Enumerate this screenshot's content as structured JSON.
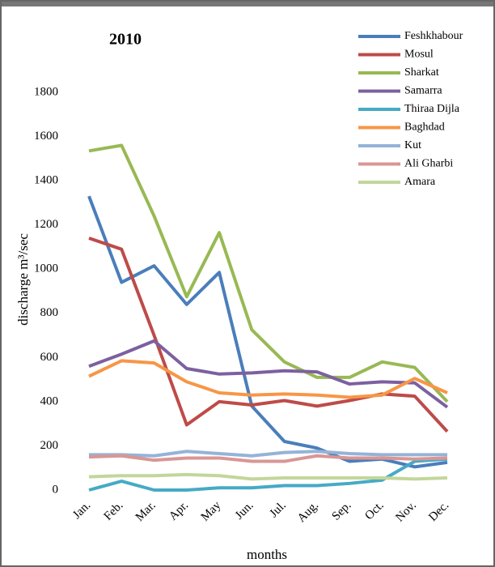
{
  "chart_data": {
    "type": "line",
    "title": "2010",
    "x_label": "months",
    "y_label": "discharge m³/sec",
    "categories": [
      "Jan.",
      "Feb.",
      "Mar.",
      "Apr.",
      "May",
      "Jun.",
      "Jul.",
      "Aug.",
      "Sep.",
      "Oct.",
      "Nov.",
      "Dec."
    ],
    "ylim": [
      0,
      1800
    ],
    "yticks": [
      0,
      200,
      400,
      600,
      800,
      1000,
      1200,
      1400,
      1600,
      1800
    ],
    "grid": false,
    "legend": "top-right",
    "series": [
      {
        "name": "Feshkhabour",
        "color": "#4a7ebb",
        "values": [
          1330,
          940,
          1015,
          840,
          985,
          380,
          220,
          190,
          130,
          140,
          105,
          125
        ]
      },
      {
        "name": "Mosul",
        "color": "#be4b48",
        "values": [
          1140,
          1090,
          700,
          295,
          400,
          385,
          405,
          380,
          405,
          435,
          425,
          265
        ]
      },
      {
        "name": "Sharkat",
        "color": "#98b954",
        "values": [
          1535,
          1560,
          1240,
          875,
          1165,
          725,
          580,
          510,
          510,
          580,
          555,
          400
        ]
      },
      {
        "name": "Samarra",
        "color": "#7d60a0",
        "values": [
          560,
          615,
          675,
          550,
          525,
          530,
          540,
          535,
          480,
          490,
          485,
          375
        ]
      },
      {
        "name": "Thiraa Dijla",
        "color": "#46aac5",
        "values": [
          0,
          40,
          0,
          0,
          10,
          10,
          20,
          20,
          30,
          45,
          130,
          140
        ]
      },
      {
        "name": "Baghdad",
        "color": "#f79646",
        "values": [
          515,
          585,
          575,
          490,
          440,
          430,
          435,
          430,
          420,
          430,
          505,
          440
        ]
      },
      {
        "name": "Kut",
        "color": "#95b3d7",
        "values": [
          160,
          160,
          155,
          175,
          165,
          155,
          170,
          175,
          165,
          160,
          160,
          160
        ]
      },
      {
        "name": "Ali Gharbi",
        "color": "#d99694",
        "values": [
          150,
          155,
          135,
          145,
          145,
          130,
          130,
          155,
          145,
          145,
          140,
          145
        ]
      },
      {
        "name": "Amara",
        "color": "#c3d69b",
        "values": [
          60,
          65,
          65,
          70,
          65,
          50,
          55,
          55,
          55,
          55,
          50,
          55
        ]
      }
    ]
  }
}
